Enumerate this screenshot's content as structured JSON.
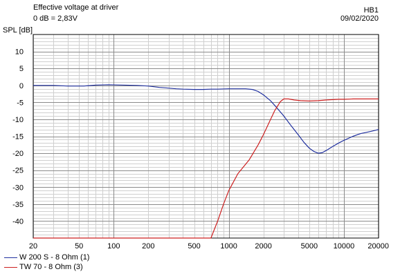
{
  "header": {
    "title": "Effective voltage at driver",
    "subtitle": "0 dB = 2,83V",
    "id_label": "HB1",
    "date": "09/02/2020"
  },
  "chart_data": {
    "type": "line",
    "ylabel": "SPL [dB]",
    "x_scale": "log",
    "xlim": [
      20,
      20000
    ],
    "ylim": [
      -45,
      15
    ],
    "x_ticks": [
      20,
      50,
      100,
      200,
      500,
      1000,
      2000,
      5000,
      10000,
      20000
    ],
    "x_tick_labels": [
      "20",
      "50",
      "100",
      "200",
      "500",
      "1000",
      "2000",
      "5000",
      "10000",
      "20000"
    ],
    "y_ticks": [
      10,
      5,
      0,
      -5,
      -10,
      -15,
      -20,
      -25,
      -30,
      -35,
      -40
    ],
    "y_tick_labels": [
      "10",
      "5",
      "0",
      "-5",
      "-10",
      "-15",
      "-20",
      "-25",
      "-30",
      "-35",
      "-40"
    ],
    "grid": true,
    "legend_position": "bottom-left",
    "series": [
      {
        "name": "W 200 S - 8 Ohm (1)",
        "color": "#1f2f9e",
        "points": [
          [
            20,
            0
          ],
          [
            30,
            0
          ],
          [
            40,
            -0.2
          ],
          [
            55,
            -0.2
          ],
          [
            70,
            0.1
          ],
          [
            90,
            0.2
          ],
          [
            120,
            0.1
          ],
          [
            160,
            0
          ],
          [
            200,
            -0.2
          ],
          [
            250,
            -0.6
          ],
          [
            300,
            -0.8
          ],
          [
            350,
            -1
          ],
          [
            400,
            -1.1
          ],
          [
            500,
            -1.2
          ],
          [
            600,
            -1.2
          ],
          [
            700,
            -1.1
          ],
          [
            800,
            -1.1
          ],
          [
            1000,
            -1
          ],
          [
            1200,
            -1
          ],
          [
            1400,
            -1
          ],
          [
            1600,
            -1.2
          ],
          [
            1800,
            -1.8
          ],
          [
            2000,
            -2.8
          ],
          [
            2300,
            -4.5
          ],
          [
            2600,
            -6.5
          ],
          [
            3000,
            -9
          ],
          [
            3500,
            -12
          ],
          [
            4000,
            -14.5
          ],
          [
            4500,
            -16.8
          ],
          [
            5000,
            -18.5
          ],
          [
            5500,
            -19.5
          ],
          [
            6000,
            -20
          ],
          [
            6500,
            -19.8
          ],
          [
            7000,
            -19.2
          ],
          [
            8000,
            -18
          ],
          [
            9000,
            -17
          ],
          [
            10000,
            -16.2
          ],
          [
            12000,
            -15
          ],
          [
            14000,
            -14.2
          ],
          [
            17000,
            -13.6
          ],
          [
            20000,
            -13
          ]
        ]
      },
      {
        "name": "TW 70 - 8 Ohm (3)",
        "color": "#cc1f1f",
        "points": [
          [
            20,
            -45
          ],
          [
            600,
            -45
          ],
          [
            700,
            -45
          ],
          [
            800,
            -40
          ],
          [
            900,
            -35
          ],
          [
            1000,
            -31
          ],
          [
            1200,
            -26
          ],
          [
            1500,
            -22
          ],
          [
            1800,
            -17.5
          ],
          [
            2000,
            -14.5
          ],
          [
            2200,
            -11.5
          ],
          [
            2500,
            -7.5
          ],
          [
            2800,
            -4.8
          ],
          [
            3000,
            -4
          ],
          [
            3300,
            -4
          ],
          [
            3700,
            -4.3
          ],
          [
            4200,
            -4.5
          ],
          [
            5000,
            -4.6
          ],
          [
            6000,
            -4.5
          ],
          [
            7000,
            -4.3
          ],
          [
            8000,
            -4.2
          ],
          [
            9000,
            -4.1
          ],
          [
            10000,
            -4.1
          ],
          [
            12000,
            -4
          ],
          [
            15000,
            -4
          ],
          [
            20000,
            -4
          ]
        ]
      }
    ]
  }
}
